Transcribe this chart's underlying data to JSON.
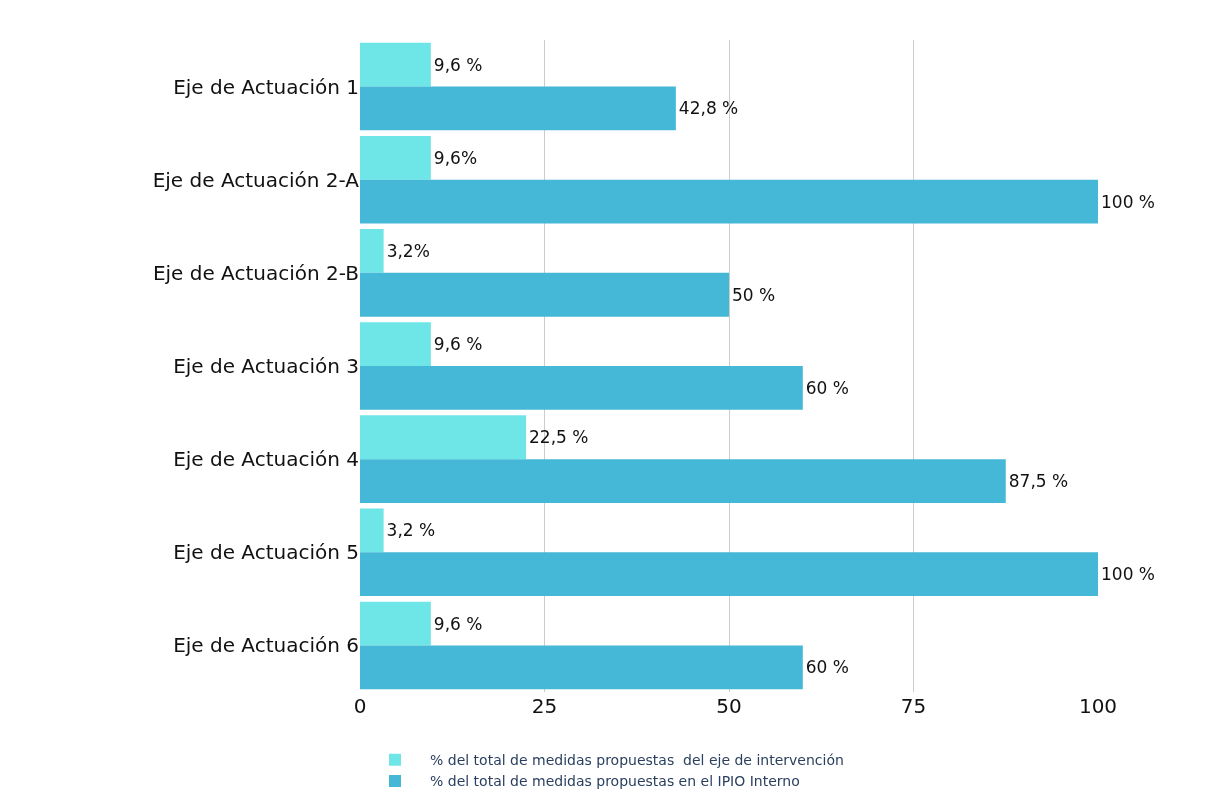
{
  "chart_data": {
    "type": "bar",
    "orientation": "horizontal",
    "categories": [
      "Eje de Actuación 1",
      "Eje de Actuación 2-A",
      "Eje de Actuación 2-B",
      "Eje de Actuación 3",
      "Eje de Actuación 4",
      "Eje de Actuación 5",
      "Eje de Actuación 6"
    ],
    "series": [
      {
        "name": "% del total de medidas propuestas  del eje de intervención",
        "color": "#6ee6e8",
        "values": [
          9.6,
          9.6,
          3.2,
          9.6,
          22.5,
          3.2,
          9.6
        ],
        "value_labels": [
          "9,6 %",
          "9,6%",
          "3,2%",
          "9,6 %",
          "22,5 %",
          "3,2 %",
          "9,6 %"
        ]
      },
      {
        "name": "% del total de medidas propuestas en el IPIO Interno",
        "color": "#44b8d6",
        "values": [
          42.8,
          100,
          50,
          60,
          87.5,
          100,
          60
        ],
        "value_labels": [
          "42,8 %",
          "100 %",
          "50 %",
          "60 %",
          "87,5 %",
          "100 %",
          "60 %"
        ]
      }
    ],
    "xlim": [
      0,
      100
    ],
    "xticks": [
      0,
      25,
      50,
      75,
      100
    ],
    "grid": "x",
    "legend": "bottom"
  }
}
